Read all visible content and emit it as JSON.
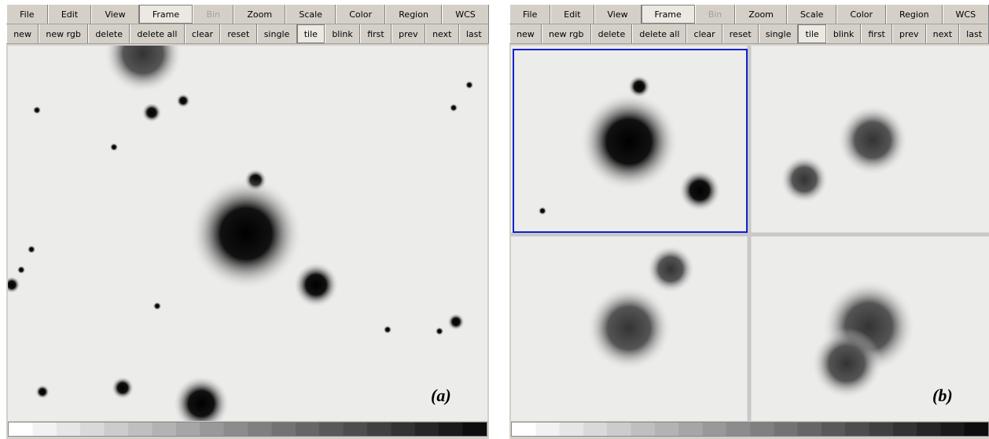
{
  "panels": [
    {
      "menu": [
        "File",
        "Edit",
        "View",
        "Frame",
        "Bin",
        "Zoom",
        "Scale",
        "Color",
        "Region",
        "WCS"
      ],
      "buttons": [
        "new",
        "new rgb",
        "delete",
        "delete all",
        "clear",
        "reset",
        "single",
        "tile",
        "blink",
        "first",
        "prev",
        "next",
        "last"
      ],
      "label": "(a)"
    },
    {
      "menu": [
        "File",
        "Edit",
        "View",
        "Frame",
        "Bin",
        "Zoom",
        "Scale",
        "Color",
        "Region",
        "WCS"
      ],
      "buttons": [
        "new",
        "new rgb",
        "delete",
        "delete all",
        "clear",
        "reset",
        "single",
        "tile",
        "blink",
        "first",
        "prev",
        "next",
        "last"
      ],
      "label": "(b)"
    }
  ]
}
